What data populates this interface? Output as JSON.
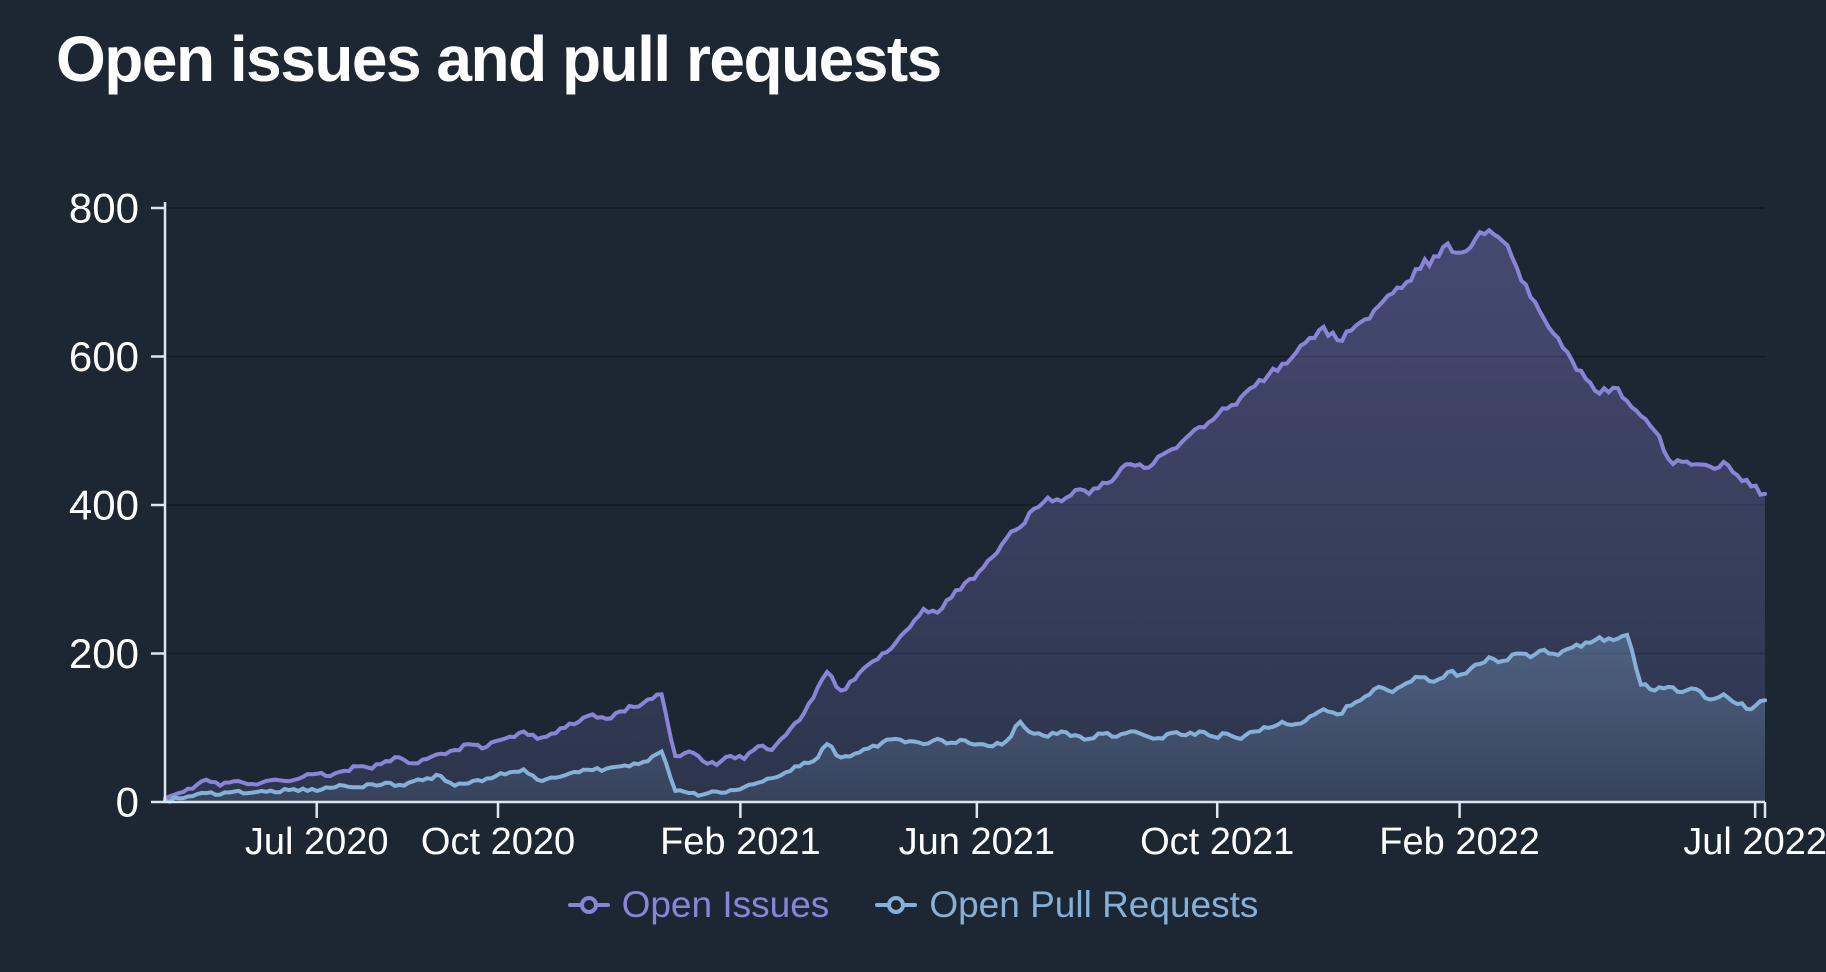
{
  "title": "Open issues and pull requests",
  "colors": {
    "background": "#1d2734",
    "axis": "#dde5ee",
    "grid": "rgba(9,15,24,0.55)",
    "text": "#ffffff",
    "issues": "#8a84d9",
    "pull_requests": "#85b0d8"
  },
  "legend": {
    "position": "bottom",
    "items": [
      {
        "label": "Open Issues",
        "color": "#8a84d9"
      },
      {
        "label": "Open Pull Requests",
        "color": "#85b0d8"
      }
    ]
  },
  "chart_data": {
    "type": "area",
    "title": "Open issues and pull requests",
    "xlabel": "",
    "ylabel": "",
    "grid": "horizontal",
    "legend_position": "bottom",
    "x_axis": {
      "kind": "time",
      "start_date": "2020-04-15",
      "end_date": "2022-07-06",
      "day_max": 812,
      "ticks": [
        {
          "label": "Jul 2020",
          "day": 77
        },
        {
          "label": "Oct 2020",
          "day": 169
        },
        {
          "label": "Feb 2021",
          "day": 292
        },
        {
          "label": "Jun 2021",
          "day": 412
        },
        {
          "label": "Oct 2021",
          "day": 534
        },
        {
          "label": "Feb 2022",
          "day": 657
        },
        {
          "label": "Jul 2022",
          "day": 807
        }
      ]
    },
    "y_axis": {
      "min": 0,
      "max": 800,
      "ticks": [
        0,
        200,
        400,
        600,
        800
      ]
    },
    "series": [
      {
        "name": "Open Issues",
        "color": "#8a84d9",
        "fill_top": "rgba(138,132,217,0.38)",
        "fill_bottom": "rgba(138,132,217,0.14)",
        "start_day": 0,
        "step_days": 7,
        "values": [
          5,
          12,
          18,
          30,
          22,
          28,
          24,
          26,
          30,
          28,
          34,
          38,
          35,
          42,
          48,
          45,
          55,
          60,
          52,
          58,
          65,
          70,
          78,
          72,
          82,
          88,
          95,
          85,
          92,
          100,
          108,
          118,
          112,
          122,
          128,
          138,
          145,
          62,
          68,
          55,
          50,
          62,
          58,
          75,
          70,
          90,
          110,
          140,
          175,
          150,
          165,
          185,
          200,
          215,
          235,
          260,
          255,
          275,
          295,
          310,
          330,
          355,
          370,
          395,
          410,
          405,
          420,
          415,
          430,
          440,
          455,
          450,
          465,
          475,
          490,
          505,
          515,
          530,
          545,
          560,
          575,
          590,
          605,
          625,
          640,
          622,
          635,
          650,
          668,
          685,
          700,
          718,
          735,
          752,
          740,
          758,
          770,
          755,
          720,
          680,
          650,
          625,
          595,
          570,
          550,
          558,
          540,
          520,
          500,
          462,
          458,
          455,
          452,
          458,
          440,
          425,
          415
        ]
      },
      {
        "name": "Open Pull Requests",
        "color": "#85b0d8",
        "fill_top": "rgba(133,176,217,0.38)",
        "fill_bottom": "rgba(133,176,217,0.10)",
        "start_day": 0,
        "step_days": 7,
        "values": [
          2,
          5,
          8,
          12,
          10,
          14,
          12,
          15,
          13,
          16,
          18,
          15,
          19,
          22,
          20,
          24,
          26,
          23,
          28,
          32,
          35,
          22,
          25,
          28,
          35,
          40,
          44,
          30,
          33,
          36,
          40,
          43,
          45,
          48,
          52,
          55,
          68,
          15,
          12,
          10,
          14,
          16,
          20,
          26,
          32,
          40,
          48,
          55,
          78,
          60,
          65,
          72,
          80,
          85,
          82,
          78,
          85,
          80,
          83,
          78,
          75,
          82,
          108,
          92,
          88,
          95,
          90,
          85,
          92,
          88,
          95,
          90,
          86,
          93,
          90,
          95,
          88,
          92,
          85,
          95,
          100,
          108,
          105,
          115,
          125,
          118,
          130,
          142,
          155,
          148,
          160,
          168,
          162,
          175,
          172,
          185,
          195,
          190,
          200,
          195,
          205,
          198,
          208,
          215,
          222,
          218,
          225,
          158,
          150,
          155,
          148,
          152,
          138,
          145,
          132,
          125,
          137
        ]
      }
    ]
  }
}
